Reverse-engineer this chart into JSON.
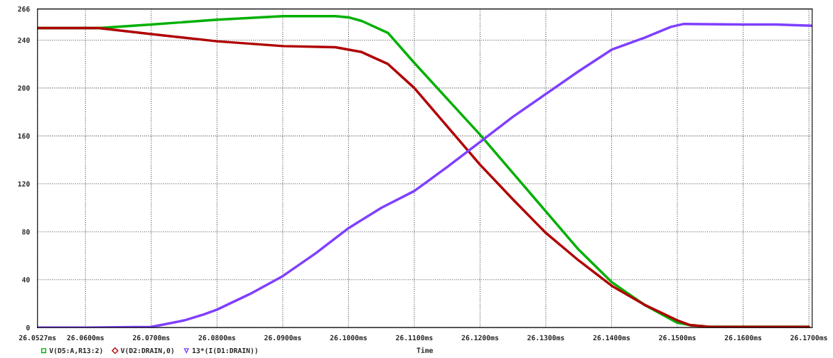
{
  "chart_data": {
    "type": "line",
    "xlabel": "Time",
    "xlim": [
      26.0527,
      26.1705
    ],
    "ylim": [
      0,
      266
    ],
    "xticks": [
      {
        "value": 26.0527,
        "label": "26.0527ms"
      },
      {
        "value": 26.06,
        "label": "26.0600ms"
      },
      {
        "value": 26.07,
        "label": "26.0700ms"
      },
      {
        "value": 26.08,
        "label": "26.0800ms"
      },
      {
        "value": 26.09,
        "label": "26.0900ms"
      },
      {
        "value": 26.1,
        "label": "26.1000ms"
      },
      {
        "value": 26.11,
        "label": "26.1100ms"
      },
      {
        "value": 26.12,
        "label": "26.1200ms"
      },
      {
        "value": 26.13,
        "label": "26.1300ms"
      },
      {
        "value": 26.14,
        "label": "26.1400ms"
      },
      {
        "value": 26.15,
        "label": "26.1500ms"
      },
      {
        "value": 26.16,
        "label": "26.1600ms"
      },
      {
        "value": 26.17,
        "label": "26.1700ms"
      }
    ],
    "yticks": [
      0,
      40,
      80,
      120,
      160,
      200,
      240,
      266
    ],
    "grid": true,
    "legend": "bottom left",
    "series": [
      {
        "name": "V(D5:A,R13:2)",
        "color": "#00b000",
        "x": [
          26.0527,
          26.062,
          26.07,
          26.08,
          26.09,
          26.098,
          26.1,
          26.102,
          26.106,
          26.11,
          26.115,
          26.12,
          26.125,
          26.13,
          26.135,
          26.14,
          26.145,
          26.15,
          26.152,
          26.155,
          26.17
        ],
        "values": [
          250,
          250,
          253,
          257,
          260,
          260,
          259,
          256,
          246,
          221,
          191,
          161,
          129,
          97,
          65,
          38,
          19,
          4,
          2,
          0.5,
          0.5
        ]
      },
      {
        "name": "V(D2:DRAIN,0)",
        "color": "#b00000",
        "x": [
          26.0527,
          26.062,
          26.07,
          26.08,
          26.09,
          26.098,
          26.102,
          26.106,
          26.11,
          26.115,
          26.12,
          26.125,
          26.13,
          26.135,
          26.14,
          26.145,
          26.15,
          26.152,
          26.155,
          26.17
        ],
        "values": [
          250,
          250,
          245,
          239,
          235,
          234,
          230,
          220,
          200,
          168,
          136,
          107,
          79,
          56,
          35,
          19,
          6,
          2,
          0.5,
          0.5
        ]
      },
      {
        "name": "13*(I(D1:DRAIN))",
        "color": "#7f3fff",
        "x": [
          26.0527,
          26.06,
          26.07,
          26.075,
          26.078,
          26.08,
          26.085,
          26.09,
          26.095,
          26.1,
          26.105,
          26.11,
          26.115,
          26.12,
          26.125,
          26.13,
          26.135,
          26.14,
          26.145,
          26.149,
          26.151,
          26.16,
          26.165,
          26.1705
        ],
        "values": [
          0,
          0,
          0.5,
          6,
          11,
          15,
          28,
          43,
          62,
          83,
          100,
          114,
          134,
          155,
          176,
          195,
          214,
          232,
          242,
          251,
          253.5,
          253,
          253,
          252
        ]
      }
    ]
  }
}
